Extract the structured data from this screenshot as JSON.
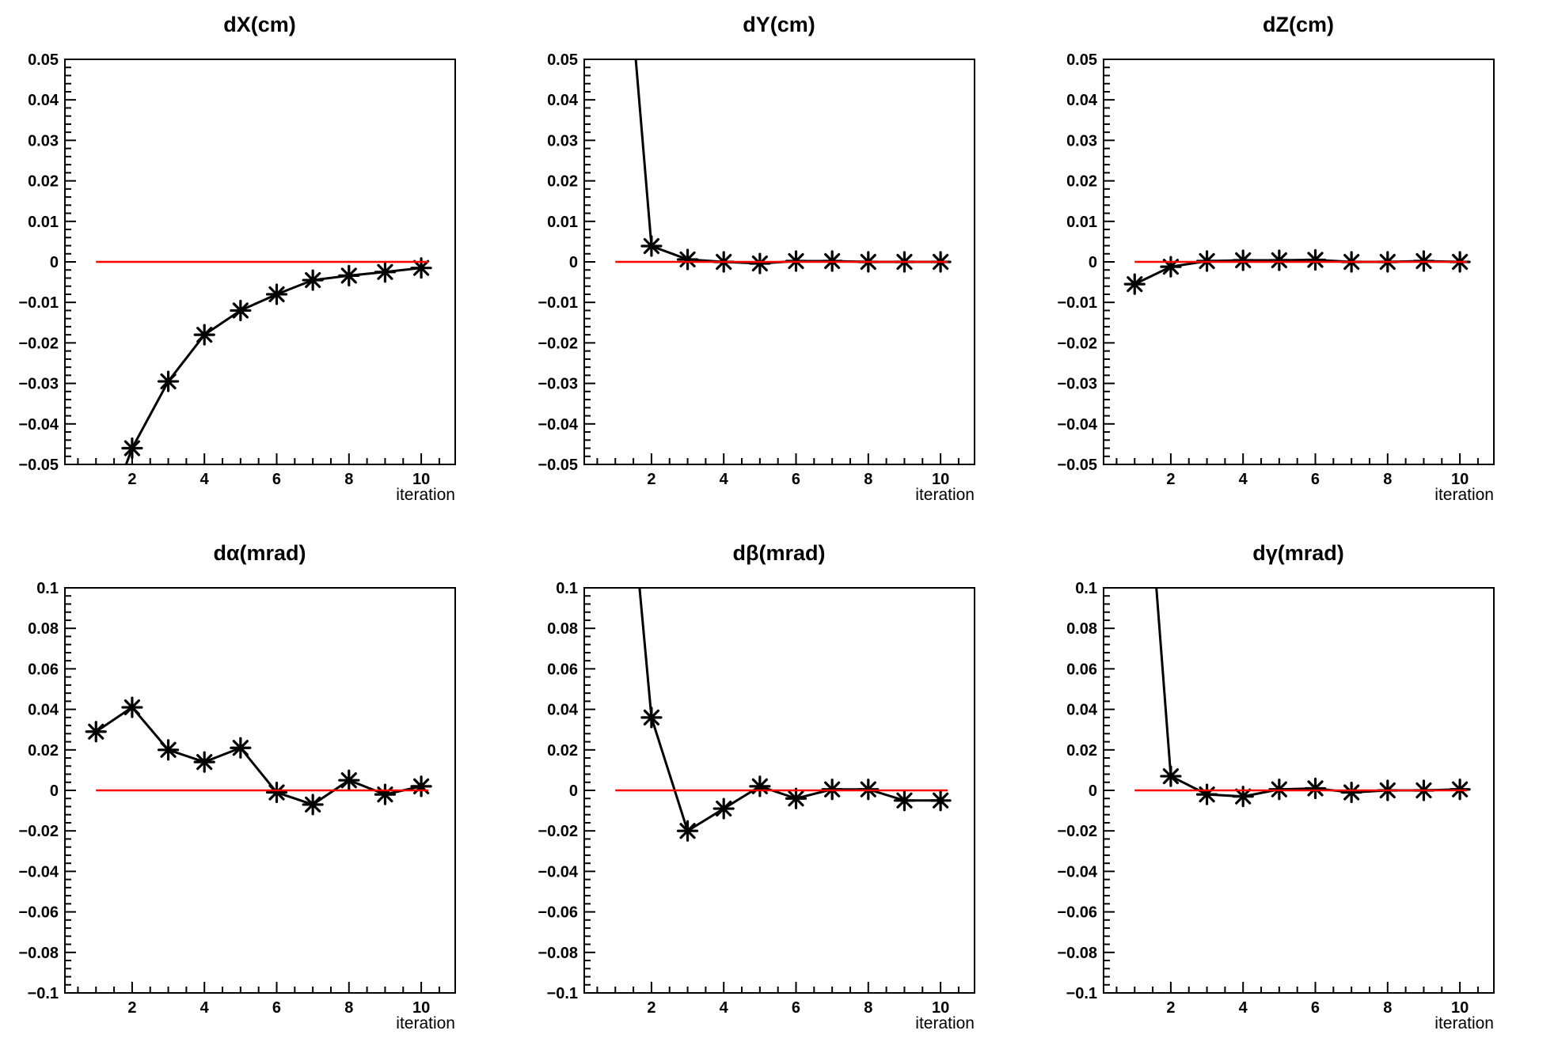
{
  "page": {
    "background": "#ffffff"
  },
  "colors": {
    "data_line": "#000000",
    "reference_line": "#ff0000",
    "frame": "#000000",
    "text": "#000000"
  },
  "x_axis": {
    "title": "iteration",
    "major_ticks": [
      2,
      4,
      6,
      8,
      10
    ],
    "minor_step": 0.5,
    "xlim": [
      0.14,
      10.94
    ]
  },
  "chart_data": [
    {
      "type": "line",
      "title": "dX(cm)",
      "xlabel": "iteration",
      "marker": "star8",
      "x": [
        1,
        2,
        3,
        4,
        5,
        6,
        7,
        8,
        9,
        10
      ],
      "y": [
        -0.07,
        -0.046,
        -0.0295,
        -0.018,
        -0.012,
        -0.008,
        -0.0045,
        -0.0034,
        -0.0025,
        -0.0015
      ],
      "ylim": [
        -0.05,
        0.05
      ],
      "y_major_step": 0.01,
      "y_minor_step": 0.002,
      "xlim": [
        0.14,
        10.94
      ],
      "x_major_ticks": [
        2,
        4,
        6,
        8,
        10
      ],
      "x_minor_step": 0.5,
      "grid": false,
      "legend": null,
      "ref_line": {
        "y": 0,
        "x1": 1,
        "x2": 10.2,
        "color": "#ff0000"
      }
    },
    {
      "type": "line",
      "title": "dY(cm)",
      "xlabel": "iteration",
      "marker": "star8",
      "x": [
        1,
        2,
        3,
        4,
        5,
        6,
        7,
        8,
        9,
        10
      ],
      "y": [
        0.11,
        0.0039,
        0.0006,
        0.0,
        -0.0004,
        0.0002,
        0.0002,
        0.0,
        0.0,
        0.0
      ],
      "ylim": [
        -0.05,
        0.05
      ],
      "y_major_step": 0.01,
      "y_minor_step": 0.002,
      "xlim": [
        0.14,
        10.94
      ],
      "x_major_ticks": [
        2,
        4,
        6,
        8,
        10
      ],
      "x_minor_step": 0.5,
      "grid": false,
      "legend": null,
      "ref_line": {
        "y": 0,
        "x1": 1,
        "x2": 10.2,
        "color": "#ff0000"
      }
    },
    {
      "type": "line",
      "title": "dZ(cm)",
      "xlabel": "iteration",
      "marker": "star8",
      "x": [
        1,
        2,
        3,
        4,
        5,
        6,
        7,
        8,
        9,
        10
      ],
      "y": [
        -0.0055,
        -0.0012,
        0.0002,
        0.0004,
        0.0004,
        0.0005,
        0.0,
        0.0,
        0.0002,
        0.0
      ],
      "ylim": [
        -0.05,
        0.05
      ],
      "y_major_step": 0.01,
      "y_minor_step": 0.002,
      "xlim": [
        0.14,
        10.94
      ],
      "x_major_ticks": [
        2,
        4,
        6,
        8,
        10
      ],
      "x_minor_step": 0.5,
      "grid": false,
      "legend": null,
      "ref_line": {
        "y": 0,
        "x1": 1,
        "x2": 10.2,
        "color": "#ff0000"
      }
    },
    {
      "type": "line",
      "title": "dα(mrad)",
      "xlabel": "iteration",
      "marker": "star8",
      "x": [
        1,
        2,
        3,
        4,
        5,
        6,
        7,
        8,
        9,
        10
      ],
      "y": [
        0.029,
        0.041,
        0.02,
        0.014,
        0.021,
        -0.001,
        -0.007,
        0.005,
        -0.002,
        0.002
      ],
      "ylim": [
        -0.1,
        0.1
      ],
      "y_major_step": 0.02,
      "y_minor_step": 0.004,
      "xlim": [
        0.14,
        10.94
      ],
      "x_major_ticks": [
        2,
        4,
        6,
        8,
        10
      ],
      "x_minor_step": 0.5,
      "grid": false,
      "legend": null,
      "ref_line": {
        "y": 0,
        "x1": 1,
        "x2": 10.2,
        "color": "#ff0000"
      }
    },
    {
      "type": "line",
      "title": "dβ(mrad)",
      "xlabel": "iteration",
      "marker": "star8",
      "x": [
        1,
        2,
        3,
        4,
        5,
        6,
        7,
        8,
        9,
        10
      ],
      "y": [
        0.23,
        0.036,
        -0.02,
        -0.009,
        0.002,
        -0.004,
        0.0005,
        0.0005,
        -0.005,
        -0.005
      ],
      "ylim": [
        -0.1,
        0.1
      ],
      "y_major_step": 0.02,
      "y_minor_step": 0.004,
      "xlim": [
        0.14,
        10.94
      ],
      "x_major_ticks": [
        2,
        4,
        6,
        8,
        10
      ],
      "x_minor_step": 0.5,
      "grid": false,
      "legend": null,
      "ref_line": {
        "y": 0,
        "x1": 1,
        "x2": 10.2,
        "color": "#ff0000"
      }
    },
    {
      "type": "line",
      "title": "dγ(mrad)",
      "xlabel": "iteration",
      "marker": "star8",
      "x": [
        1,
        2,
        3,
        4,
        5,
        6,
        7,
        8,
        9,
        10
      ],
      "y": [
        0.24,
        0.007,
        -0.002,
        -0.003,
        0.0005,
        0.001,
        -0.001,
        0.0,
        0.0,
        0.0005
      ],
      "ylim": [
        -0.1,
        0.1
      ],
      "y_major_step": 0.02,
      "y_minor_step": 0.004,
      "xlim": [
        0.14,
        10.94
      ],
      "x_major_ticks": [
        2,
        4,
        6,
        8,
        10
      ],
      "x_minor_step": 0.5,
      "grid": false,
      "legend": null,
      "ref_line": {
        "y": 0,
        "x1": 1,
        "x2": 10.2,
        "color": "#ff0000"
      }
    }
  ]
}
